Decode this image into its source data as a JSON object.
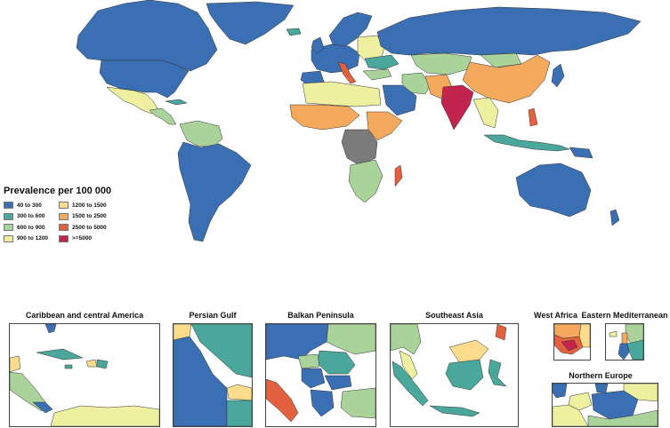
{
  "legend": {
    "title": "Prevalence per 100 000",
    "items": [
      {
        "label": "40 to 300",
        "color": "#3b6fb4"
      },
      {
        "label": "300 to 600",
        "color": "#4aa79b"
      },
      {
        "label": "600 to 900",
        "color": "#a9d39b"
      },
      {
        "label": "900 to 1200",
        "color": "#eeef9f"
      },
      {
        "label": "1200 to 1500",
        "color": "#fbdc8d"
      },
      {
        "label": "1500 to 2500",
        "color": "#f4a95d"
      },
      {
        "label": "2500 to 5000",
        "color": "#e4613f"
      },
      {
        "label": ">=5000",
        "color": "#c2244e"
      }
    ],
    "no_data_color": "#7b7b7b"
  },
  "insets": [
    {
      "id": "caribbean",
      "title": "Caribbean and central America"
    },
    {
      "id": "persian-gulf",
      "title": "Persian Gulf"
    },
    {
      "id": "balkan",
      "title": "Balkan Peninsula"
    },
    {
      "id": "southeast-asia",
      "title": "Southeast Asia"
    },
    {
      "id": "west-africa",
      "title": "West Africa"
    },
    {
      "id": "eastern-med",
      "title": "Eastern Mediterranean"
    },
    {
      "id": "northern-europe",
      "title": "Northern Europe"
    }
  ]
}
